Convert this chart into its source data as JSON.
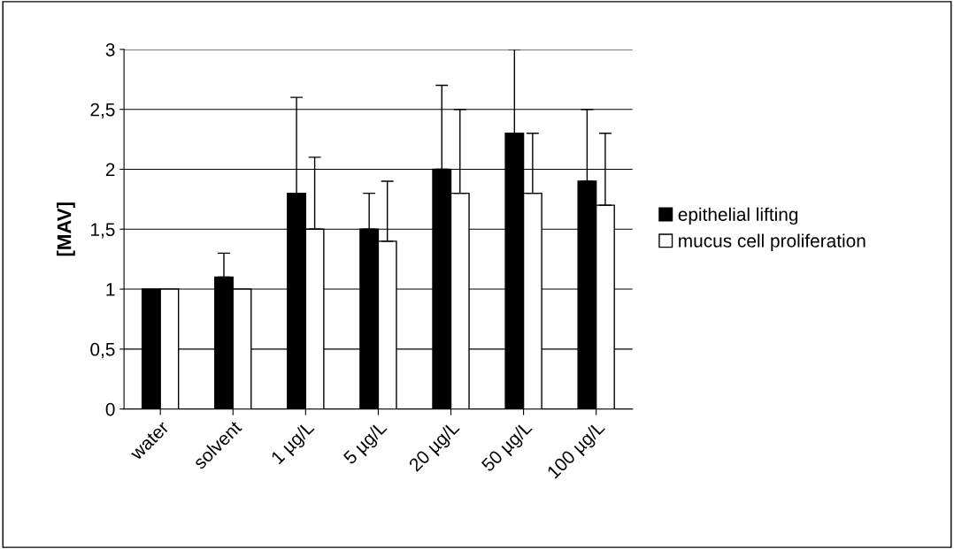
{
  "chart_data": {
    "type": "bar",
    "ylabel": "[MAV]",
    "categories": [
      "water",
      "solvent",
      "1 µg/L",
      "5 µg/L",
      "20 µg/L",
      "50 µg/L",
      "100 µg/L"
    ],
    "series": [
      {
        "name": "epithelial lifting",
        "color": "#000000",
        "values": [
          1.0,
          1.1,
          1.8,
          1.5,
          2.0,
          2.3,
          1.9
        ],
        "errors": [
          null,
          [
            1.1,
            1.3
          ],
          [
            1.8,
            2.6
          ],
          [
            1.5,
            1.8
          ],
          [
            2.0,
            2.7
          ],
          [
            2.3,
            3.0
          ],
          [
            1.9,
            2.5
          ]
        ]
      },
      {
        "name": "mucus cell proliferation",
        "color": "#ffffff",
        "values": [
          1.0,
          1.0,
          1.5,
          1.4,
          1.8,
          1.8,
          1.7
        ],
        "errors": [
          null,
          null,
          [
            1.5,
            2.1
          ],
          [
            1.4,
            1.9
          ],
          [
            1.8,
            2.5
          ],
          [
            1.8,
            2.3
          ],
          [
            1.7,
            2.3
          ]
        ]
      }
    ],
    "ylim": [
      0,
      3
    ],
    "yticks": [
      0,
      {
        "value": 0.5,
        "label": "0,5"
      },
      1,
      {
        "value": 1.5,
        "label": "1,5"
      },
      2,
      {
        "value": 2.5,
        "label": "2,5"
      },
      3
    ],
    "grid": "y",
    "legend": "right"
  }
}
